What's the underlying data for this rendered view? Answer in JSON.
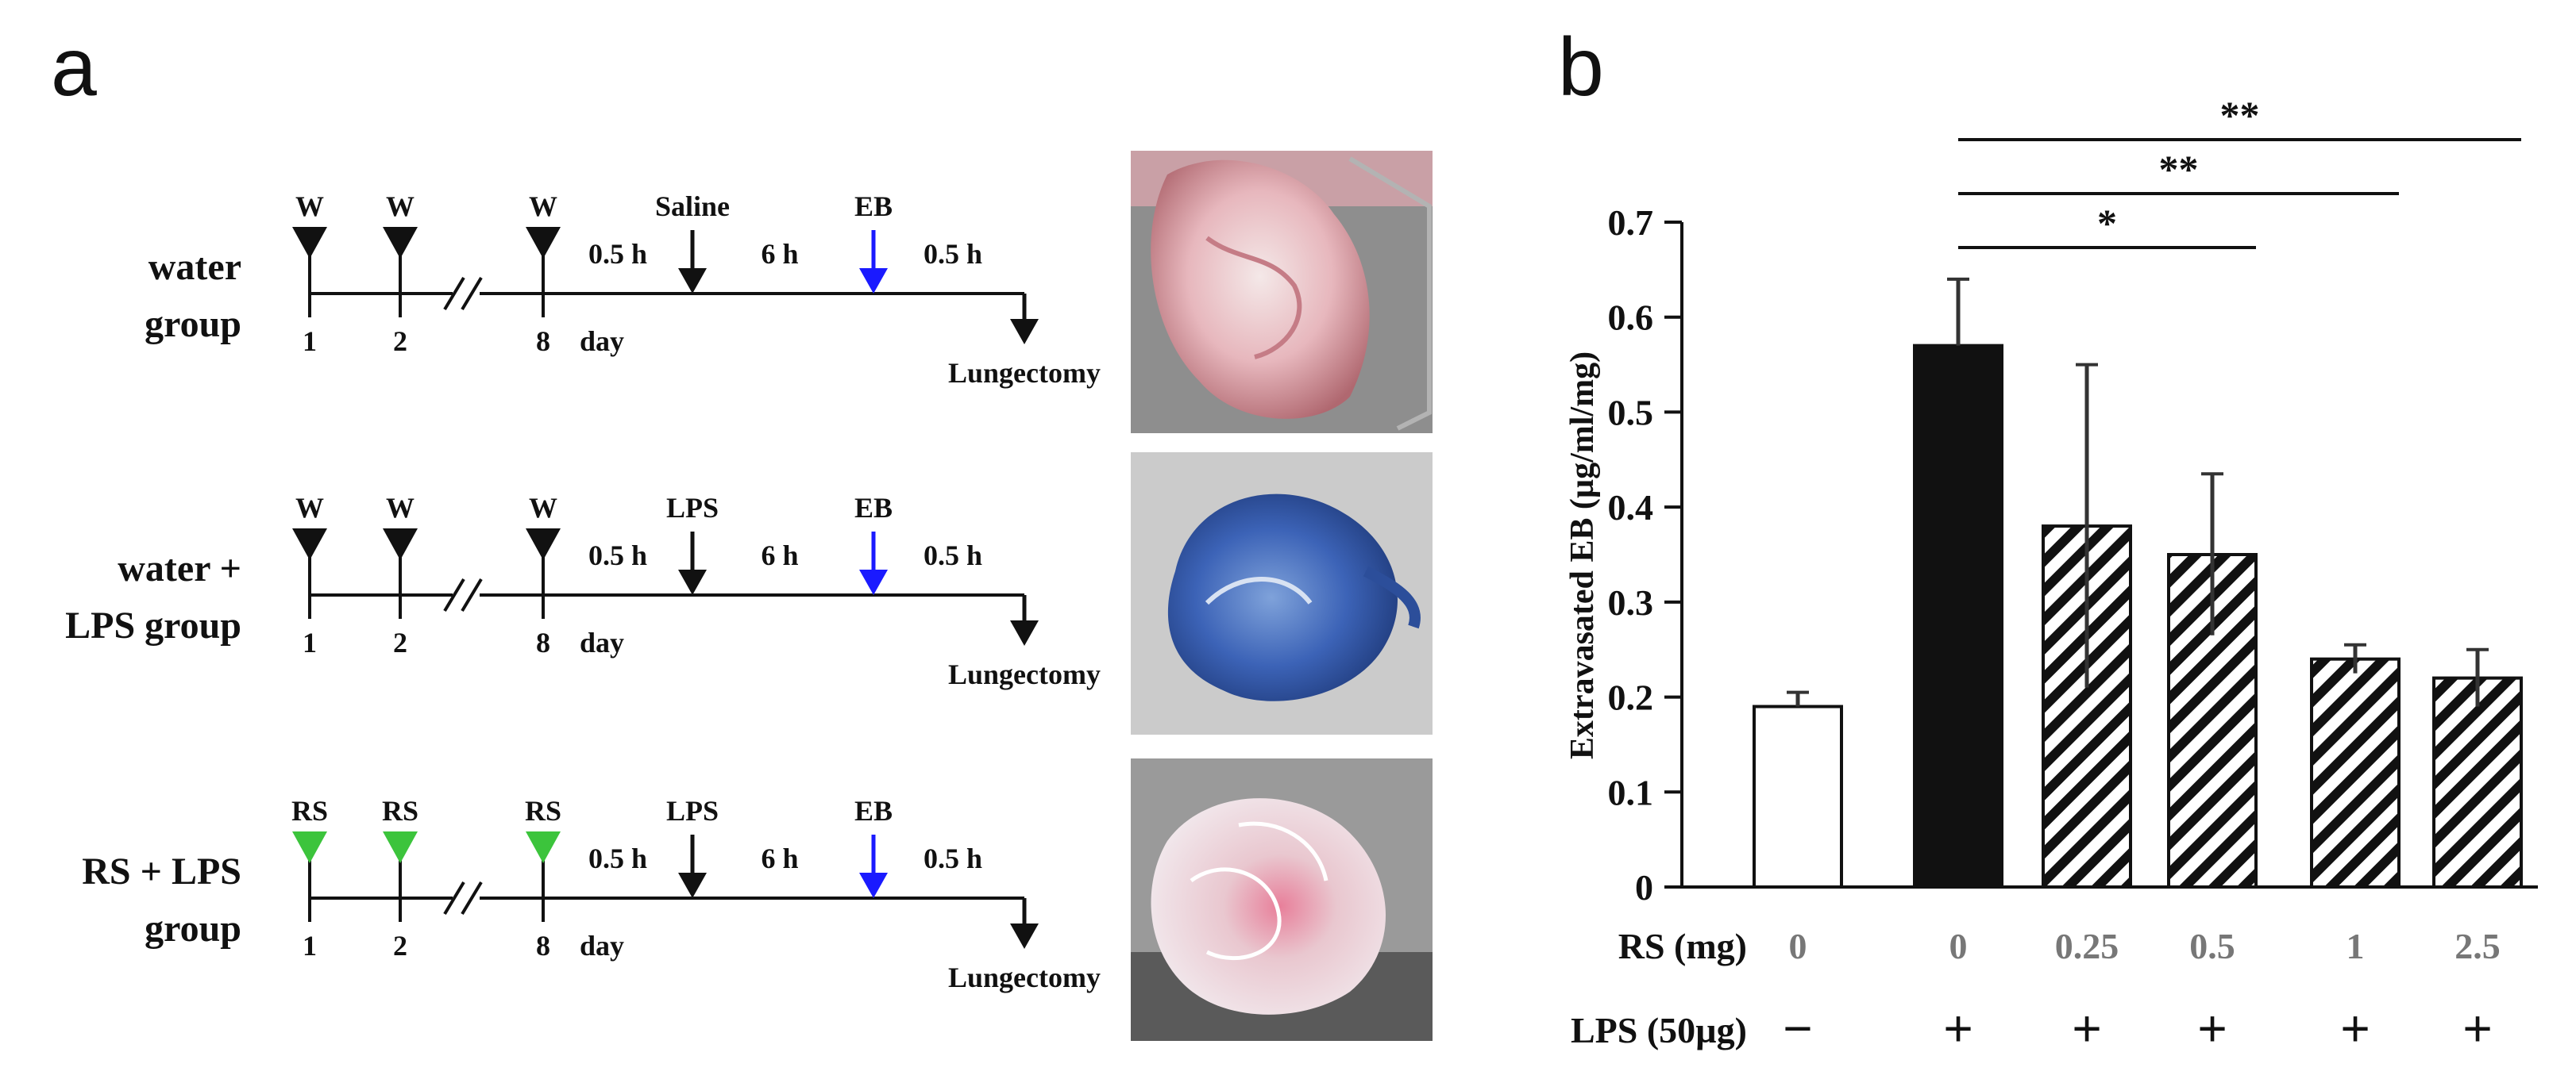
{
  "panel_a": {
    "letter": "a",
    "groups": [
      {
        "label_lines": [
          "water",
          "group"
        ],
        "pretreat_label": "W",
        "pretreat_color": "#111111",
        "challenge_label": "Saline",
        "photo": "lung-tissue-photo-pink"
      },
      {
        "label_lines": [
          "water +",
          "LPS group"
        ],
        "pretreat_label": "W",
        "pretreat_color": "#111111",
        "challenge_label": "LPS",
        "photo": "lung-tissue-photo-blue"
      },
      {
        "label_lines": [
          "RS + LPS",
          "group"
        ],
        "pretreat_label": "RS",
        "pretreat_color": "#3cc43c",
        "challenge_label": "LPS",
        "photo": "lung-tissue-photo-pale"
      }
    ],
    "day_ticks": [
      "1",
      "2",
      "8"
    ],
    "day_word": "day",
    "interval_1": "0.5 h",
    "interval_2": "6 h",
    "interval_3": "0.5 h",
    "eb_label": "EB",
    "eb_color": "#1a1aff",
    "end_label": "Lungectomy"
  },
  "panel_b": {
    "letter": "b",
    "significance": [
      {
        "label": "*",
        "from": 1,
        "to": 3
      },
      {
        "label": "**",
        "from": 1,
        "to": 4
      },
      {
        "label": "**",
        "from": 1,
        "to": 5
      }
    ],
    "row_labels": {
      "rs": "RS (mg)",
      "lps": "LPS (50µg)"
    }
  },
  "chart_data": {
    "type": "bar",
    "title": "",
    "ylabel": "Extravasated EB (µg/ml/mg)",
    "xlabel": "",
    "ylim": [
      0,
      0.7
    ],
    "yticks": [
      "0",
      "0.1",
      "0.2",
      "0.3",
      "0.4",
      "0.5",
      "0.6",
      "0.7"
    ],
    "grid": false,
    "categories": [
      "0",
      "0",
      "0.25",
      "0.5",
      "1",
      "2.5"
    ],
    "lps": [
      "−",
      "+",
      "+",
      "+",
      "+",
      "+"
    ],
    "values": [
      0.19,
      0.57,
      0.38,
      0.35,
      0.24,
      0.22
    ],
    "errors": [
      0.015,
      0.07,
      0.17,
      0.085,
      0.015,
      0.03
    ],
    "fills": [
      "white",
      "black",
      "hatch",
      "hatch",
      "hatch",
      "hatch"
    ]
  }
}
